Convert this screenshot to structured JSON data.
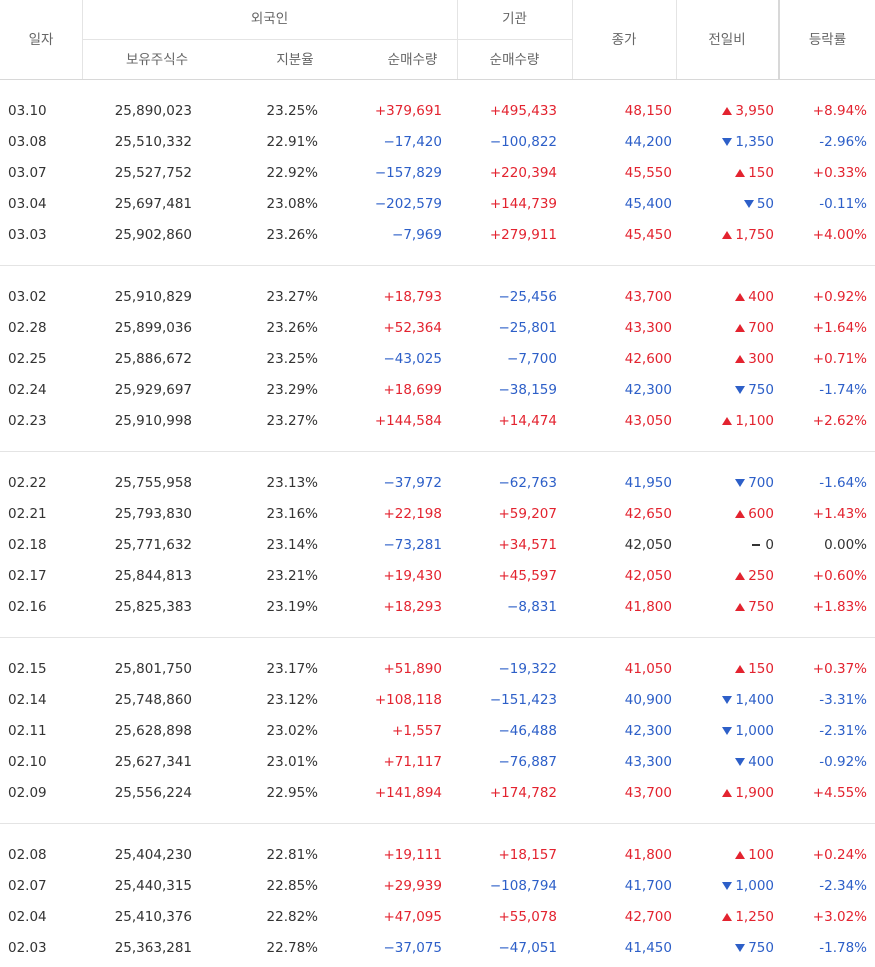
{
  "table": {
    "header": {
      "date": "일자",
      "foreign": "외국인",
      "institution": "기관",
      "close": "종가",
      "change": "전일비",
      "rate": "등락률",
      "foreign_holdings": "보유주식수",
      "foreign_ratio": "지분율",
      "foreign_net": "순매수량",
      "institution_net": "순매수량"
    },
    "groups": [
      [
        [
          "03.10",
          "25,890,023",
          "23.25%",
          "+379,691",
          "+495,433",
          "48,150",
          "3,950",
          "+8.94%"
        ],
        [
          "03.08",
          "25,510,332",
          "22.91%",
          "−17,420",
          "−100,822",
          "44,200",
          "1,350",
          "-2.96%"
        ],
        [
          "03.07",
          "25,527,752",
          "22.92%",
          "−157,829",
          "+220,394",
          "45,550",
          "150",
          "+0.33%"
        ],
        [
          "03.04",
          "25,697,481",
          "23.08%",
          "−202,579",
          "+144,739",
          "45,400",
          "50",
          "-0.11%"
        ],
        [
          "03.03",
          "25,902,860",
          "23.26%",
          "−7,969",
          "+279,911",
          "45,450",
          "1,750",
          "+4.00%"
        ]
      ],
      [
        [
          "03.02",
          "25,910,829",
          "23.27%",
          "+18,793",
          "−25,456",
          "43,700",
          "400",
          "+0.92%"
        ],
        [
          "02.28",
          "25,899,036",
          "23.26%",
          "+52,364",
          "−25,801",
          "43,300",
          "700",
          "+1.64%"
        ],
        [
          "02.25",
          "25,886,672",
          "23.25%",
          "−43,025",
          "−7,700",
          "42,600",
          "300",
          "+0.71%"
        ],
        [
          "02.24",
          "25,929,697",
          "23.29%",
          "+18,699",
          "−38,159",
          "42,300",
          "750",
          "-1.74%"
        ],
        [
          "02.23",
          "25,910,998",
          "23.27%",
          "+144,584",
          "+14,474",
          "43,050",
          "1,100",
          "+2.62%"
        ]
      ],
      [
        [
          "02.22",
          "25,755,958",
          "23.13%",
          "−37,972",
          "−62,763",
          "41,950",
          "700",
          "-1.64%"
        ],
        [
          "02.21",
          "25,793,830",
          "23.16%",
          "+22,198",
          "+59,207",
          "42,650",
          "600",
          "+1.43%"
        ],
        [
          "02.18",
          "25,771,632",
          "23.14%",
          "−73,281",
          "+34,571",
          "42,050",
          "0",
          "0.00%"
        ],
        [
          "02.17",
          "25,844,813",
          "23.21%",
          "+19,430",
          "+45,597",
          "42,050",
          "250",
          "+0.60%"
        ],
        [
          "02.16",
          "25,825,383",
          "23.19%",
          "+18,293",
          "−8,831",
          "41,800",
          "750",
          "+1.83%"
        ]
      ],
      [
        [
          "02.15",
          "25,801,750",
          "23.17%",
          "+51,890",
          "−19,322",
          "41,050",
          "150",
          "+0.37%"
        ],
        [
          "02.14",
          "25,748,860",
          "23.12%",
          "+108,118",
          "−151,423",
          "40,900",
          "1,400",
          "-3.31%"
        ],
        [
          "02.11",
          "25,628,898",
          "23.02%",
          "+1,557",
          "−46,488",
          "42,300",
          "1,000",
          "-2.31%"
        ],
        [
          "02.10",
          "25,627,341",
          "23.01%",
          "+71,117",
          "−76,887",
          "43,300",
          "400",
          "-0.92%"
        ],
        [
          "02.09",
          "25,556,224",
          "22.95%",
          "+141,894",
          "+174,782",
          "43,700",
          "1,900",
          "+4.55%"
        ]
      ],
      [
        [
          "02.08",
          "25,404,230",
          "22.81%",
          "+19,111",
          "+18,157",
          "41,800",
          "100",
          "+0.24%"
        ],
        [
          "02.07",
          "25,440,315",
          "22.85%",
          "+29,939",
          "−108,794",
          "41,700",
          "1,000",
          "-2.34%"
        ],
        [
          "02.04",
          "25,410,376",
          "22.82%",
          "+47,095",
          "+55,078",
          "42,700",
          "1,250",
          "+3.02%"
        ],
        [
          "02.03",
          "25,363,281",
          "22.78%",
          "−37,075",
          "−47,051",
          "41,450",
          "750",
          "-1.78%"
        ]
      ]
    ]
  }
}
